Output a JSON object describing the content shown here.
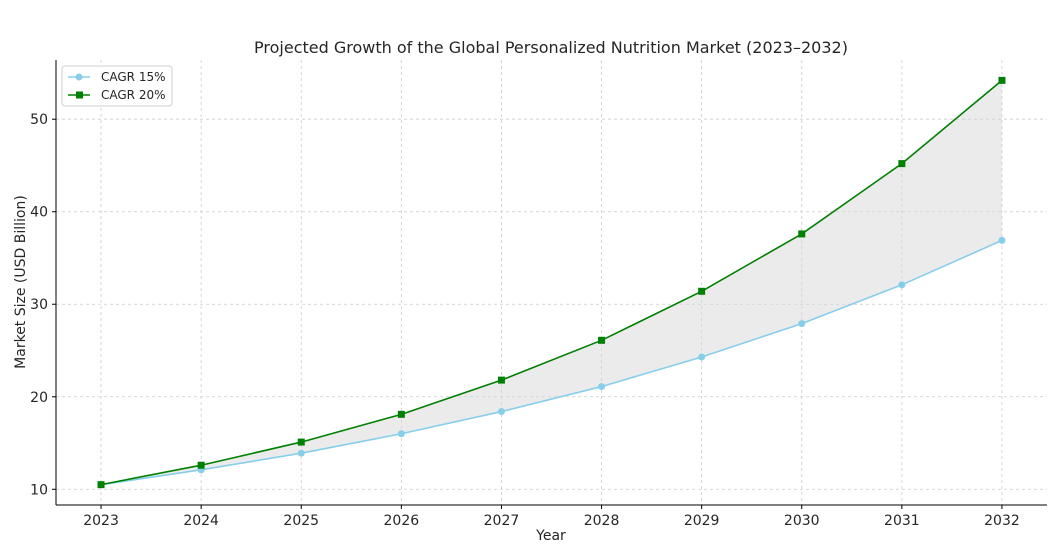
{
  "chart_data": {
    "type": "line",
    "title": "Projected Growth of the Global Personalized Nutrition Market (2023–2032)",
    "xlabel": "Year",
    "ylabel": "Market Size (USD Billion)",
    "x": [
      2023,
      2024,
      2025,
      2026,
      2027,
      2028,
      2029,
      2030,
      2031,
      2032
    ],
    "series": [
      {
        "name": "CAGR 15%",
        "color": "#87ceeb",
        "marker": "circle",
        "values": [
          10.5,
          12.1,
          13.9,
          16.0,
          18.4,
          21.1,
          24.3,
          27.9,
          32.1,
          36.9
        ]
      },
      {
        "name": "CAGR 20%",
        "color": "#008000",
        "marker": "square",
        "values": [
          10.5,
          12.6,
          15.1,
          18.1,
          21.8,
          26.1,
          31.4,
          37.6,
          45.2,
          54.2
        ]
      }
    ],
    "fill_between": {
      "color": "#d3d3d3",
      "opacity": 0.45
    },
    "xlim": [
      2022.55,
      2032.45
    ],
    "ylim": [
      8.3,
      56.4
    ],
    "yticks": [
      10,
      20,
      30,
      40,
      50
    ],
    "xticks": [
      2023,
      2024,
      2025,
      2026,
      2027,
      2028,
      2029,
      2030,
      2031,
      2032
    ],
    "grid": true,
    "legend_position": "top-left"
  }
}
